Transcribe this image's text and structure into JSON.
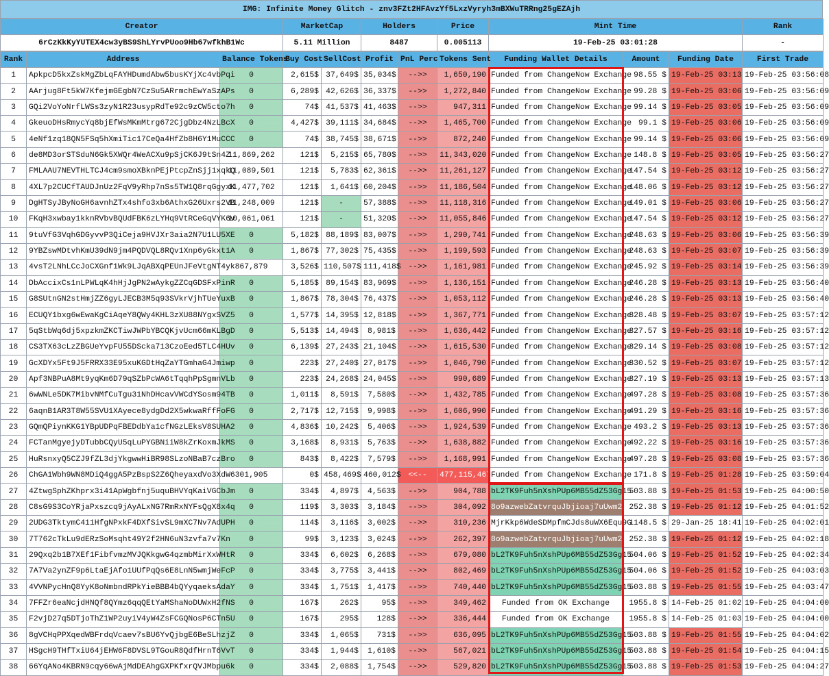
{
  "title": "IMG: Infinite Money Glitch - znv3FZt2HFAvzYf5LxzVyryh3mBXWuTRRng25gEZAjh",
  "summary": {
    "headers": [
      "Creator",
      "MarketCap",
      "Holders",
      "Price",
      "Mint Time",
      "Rank"
    ],
    "values": [
      "6rCzKkKyYUTEX4cw3yBS9ShLYrvPUoo9Hb67wfkhB1Wc",
      "5.11 Million",
      "8487",
      "0.005113",
      "19-Feb-25 03:01:28",
      "-"
    ]
  },
  "table": {
    "columns": [
      "Rank",
      "Address",
      "Balance Tokens",
      "Buy Cost",
      "SellCost",
      "Profit",
      "PnL Perc",
      "Tokens Sent",
      "Funding Wallet Details",
      "Amount",
      "Funding Date",
      "First Trade"
    ],
    "rows": [
      [
        "1",
        "ApkpcD5kxZskMgZbLqFAYHDumdAbw5busKYjXc4vbPqi",
        "0",
        "2,615$",
        "37,649$",
        "35,034$",
        "-->>",
        "1,650,190",
        "Funded from ChangeNow Exchange",
        "98.55 $",
        "19-Feb-25 03:13",
        "19-Feb-25 03:56:08"
      ],
      [
        "2",
        "AArjug8Ft5kW7KfejmGEgbN7CzSu5ARrmchEwYaSzAPs",
        "0",
        "6,289$",
        "42,626$",
        "36,337$",
        "-->>",
        "1,272,840",
        "Funded from ChangeNow Exchange",
        "99.28 $",
        "19-Feb-25 03:06",
        "19-Feb-25 03:56:09"
      ],
      [
        "3",
        "GQi2VoYoNrfLWSs3zyN1R23usypRdTe92c9zCW5cto7h",
        "0",
        "74$",
        "41,537$",
        "41,463$",
        "-->>",
        "947,311",
        "Funded from ChangeNow Exchange",
        "99.14 $",
        "19-Feb-25 03:05",
        "19-Feb-25 03:56:09"
      ],
      [
        "4",
        "GkeuoDHsRmycYq8bjEfWsMKmMtrg672CjgDbz4NzLBcX",
        "0",
        "4,427$",
        "39,111$",
        "34,684$",
        "-->>",
        "1,465,700",
        "Funded from ChangeNow Exchange",
        "99.1 $",
        "19-Feb-25 03:06",
        "19-Feb-25 03:56:09"
      ],
      [
        "5",
        "4eNf1zq18QN5FSq5hXmiTic17CeQa4HfZb8H6Y1MuCCC",
        "0",
        "74$",
        "38,745$",
        "38,671$",
        "-->>",
        "872,240",
        "Funded from ChangeNow Exchange",
        "99.14 $",
        "19-Feb-25 03:06",
        "19-Feb-25 03:56:09"
      ],
      [
        "6",
        "de8MD3orSTSduN6Gk5XWQr4WeACXu9pSjCK6J9tSn4Z",
        "11,869,262",
        "121$",
        "5,215$",
        "65,780$",
        "-->>",
        "11,343,020",
        "Funded from ChangeNow Exchange",
        "148.8 $",
        "19-Feb-25 03:05",
        "19-Feb-25 03:56:27"
      ],
      [
        "7",
        "FMLAAU7NEVTHLTCJ4cm9smoXBknPEjPtcpZnSjj1xqkQ",
        "11,089,501",
        "121$",
        "5,783$",
        "62,361$",
        "-->>",
        "11,261,127",
        "Funded from ChangeNow Exchange",
        "147.54 $",
        "19-Feb-25 03:12",
        "19-Feb-25 03:56:27"
      ],
      [
        "8",
        "4XL7p2CUCfTAUDJnUz2FqV9yRhp7nSs5TW1Q8rqGgyxK",
        "11,477,702",
        "121$",
        "1,641$",
        "60,204$",
        "-->>",
        "11,186,504",
        "Funded from ChangeNow Exchange",
        "148.06 $",
        "19-Feb-25 03:12",
        "19-Feb-25 03:56:27"
      ],
      [
        "9",
        "DgHTSyJByNoGH6avnhZTx4shfo3xb6AthxG26Uxrs2VB",
        "11,248,009",
        "121$",
        "-",
        "57,388$",
        "-->>",
        "11,118,316",
        "Funded from ChangeNow Exchange",
        "149.01 $",
        "19-Feb-25 03:06",
        "19-Feb-25 03:56:27"
      ],
      [
        "10",
        "FKqH3xwbay1kknRVbvBQUdFBK6zLYHq9VtRCeGqVYK6v",
        "10,061,061",
        "121$",
        "-",
        "51,320$",
        "-->>",
        "11,055,846",
        "Funded from ChangeNow Exchange",
        "147.54 $",
        "19-Feb-25 03:12",
        "19-Feb-25 03:56:27"
      ],
      [
        "11",
        "9tuVfG3VqhGDGyvvP3QiCeja9HVJXr3aia2N7U1LU5XE",
        "0",
        "5,182$",
        "88,189$",
        "83,007$",
        "-->>",
        "1,290,741",
        "Funded from ChangeNow Exchange",
        "248.63 $",
        "19-Feb-25 03:06",
        "19-Feb-25 03:56:39"
      ],
      [
        "12",
        "9YBZswMDtvhKmU39dN9jm4PQDVQL8RQv1Xnp6yGkxt1A",
        "0",
        "1,867$",
        "77,302$",
        "75,435$",
        "-->>",
        "1,199,593",
        "Funded from ChangeNow Exchange",
        "248.63 $",
        "19-Feb-25 03:07",
        "19-Feb-25 03:56:39"
      ],
      [
        "13",
        "4vsT2LNhLCcJoCXGnf1Wk9LJqABXqPEUnJFeVtgNT4yk",
        "867,879",
        "3,526$",
        "110,507$",
        "111,418$",
        "-->>",
        "1,161,981",
        "Funded from ChangeNow Exchange",
        "245.92 $",
        "19-Feb-25 03:14",
        "19-Feb-25 03:56:39"
      ],
      [
        "14",
        "DbAccixCs1nLPWLqK4hHjJgPN2wAykgZZCqGDSFxPinR",
        "0",
        "5,185$",
        "89,154$",
        "83,969$",
        "-->>",
        "1,136,151",
        "Funded from ChangeNow Exchange",
        "246.28 $",
        "19-Feb-25 03:13",
        "19-Feb-25 03:56:40"
      ],
      [
        "15",
        "G8SUtnGN2stHmjZZ6gyLJECB3M5q93SVkrVjhTUeYuxB",
        "0",
        "1,867$",
        "78,304$",
        "76,437$",
        "-->>",
        "1,053,112",
        "Funded from ChangeNow Exchange",
        "246.28 $",
        "19-Feb-25 03:13",
        "19-Feb-25 03:56:40"
      ],
      [
        "16",
        "ECUQY1bxg6wEwaKgCiAqeY8QWy4KHL3zXU88NYgxSVZ5",
        "0",
        "1,577$",
        "14,395$",
        "12,818$",
        "-->>",
        "1,367,771",
        "Funded from ChangeNow Exchange",
        "328.48 $",
        "19-Feb-25 03:07",
        "19-Feb-25 03:57:12"
      ],
      [
        "17",
        "5qStbWq6dj5xpzkmZKCTiwJWPbYBCQKjvUcm66mKLBgD",
        "0",
        "5,513$",
        "14,494$",
        "8,981$",
        "-->>",
        "1,636,442",
        "Funded from ChangeNow Exchange",
        "327.57 $",
        "19-Feb-25 03:16",
        "19-Feb-25 03:57:12"
      ],
      [
        "18",
        "CS3TX63cLzZBGUeYvpFU55DScka713CzoEed5TLC4HUv",
        "0",
        "6,139$",
        "27,243$",
        "21,104$",
        "-->>",
        "1,615,530",
        "Funded from ChangeNow Exchange",
        "329.14 $",
        "19-Feb-25 03:08",
        "19-Feb-25 03:57:12"
      ],
      [
        "19",
        "GcXDYx5Ft9J5FRRX33E95xuKGDtHqZaYTGmhaG4Jmiwp",
        "0",
        "223$",
        "27,240$",
        "27,017$",
        "-->>",
        "1,046,790",
        "Funded from ChangeNow Exchange",
        "330.52 $",
        "19-Feb-25 03:07",
        "19-Feb-25 03:57:12"
      ],
      [
        "20",
        "Apf3NBPuA8Mt9yqKm6D79qSZbPcWA6tTqqhPpSgmnVLb",
        "0",
        "223$",
        "24,268$",
        "24,045$",
        "-->>",
        "990,689",
        "Funded from ChangeNow Exchange",
        "327.19 $",
        "19-Feb-25 03:13",
        "19-Feb-25 03:57:13"
      ],
      [
        "21",
        "6wWNLe5DK7MibvNMfCuTgu31NhDHcavVWCdYSosm94TB",
        "0",
        "1,011$",
        "8,591$",
        "7,580$",
        "-->>",
        "1,432,785",
        "Funded from ChangeNow Exchange",
        "497.28 $",
        "19-Feb-25 03:08",
        "19-Feb-25 03:57:36"
      ],
      [
        "22",
        "6aqnB1AR3T8W55SVU1XAyece8ydgDd2X5wkwaRffFoFG",
        "0",
        "2,717$",
        "12,715$",
        "9,998$",
        "-->>",
        "1,606,990",
        "Funded from ChangeNow Exchange",
        "491.29 $",
        "19-Feb-25 03:16",
        "19-Feb-25 03:57:36"
      ],
      [
        "23",
        "GQmQPiynKKG1YBpUDPqFBEDdbYa1cfNGzLEksV8SUHA2",
        "0",
        "4,836$",
        "10,242$",
        "5,406$",
        "-->>",
        "1,924,539",
        "Funded from ChangeNow Exchange",
        "493.2 $",
        "19-Feb-25 03:13",
        "19-Feb-25 03:57:36"
      ],
      [
        "24",
        "FCTanMgyejyDTubbCQyU5qLuPYGBNiiW8kZrKoxmJkMS",
        "0",
        "3,168$",
        "8,931$",
        "5,763$",
        "-->>",
        "1,638,882",
        "Funded from ChangeNow Exchange",
        "492.22 $",
        "19-Feb-25 03:16",
        "19-Feb-25 03:57:36"
      ],
      [
        "25",
        "HuRsnxyQ5CZJ9fZL3djYkgwwHiBR98SLzoNBaB7czBro",
        "0",
        "843$",
        "8,422$",
        "7,579$",
        "-->>",
        "1,168,991",
        "Funded from ChangeNow Exchange",
        "497.28 $",
        "19-Feb-25 03:08",
        "19-Feb-25 03:57:36"
      ],
      [
        "26",
        "ChGA1Wbh9WN8MDiQ4ggA5PzBspS2Z6QheyaxdVo3XdW6",
        "301,905",
        "0$",
        "458,469$",
        "460,012$",
        "<<--",
        "477,115,467",
        "Funded from ChangeNow Exchange",
        "171.8 $",
        "19-Feb-25 01:28",
        "19-Feb-25 03:59:04"
      ],
      [
        "27",
        "4ZtwgSphZKhprx3i41ApWgbfnj5uquBHVYqKaiVGCbJm",
        "0",
        "334$",
        "4,897$",
        "4,563$",
        "-->>",
        "904,788",
        "bL2TK9Fuh5nXshPUp6MB55dZ53Gg15",
        "503.88 $",
        "19-Feb-25 01:53",
        "19-Feb-25 04:00:50"
      ],
      [
        "28",
        "C8sG9S3CoYRjaPxszcq9jAyALxNG7RmRxNYFsQgX8x4q",
        "0",
        "119$",
        "3,303$",
        "3,184$",
        "-->>",
        "304,092",
        "8o9azwebZatvrquJbjioaj7uUwm2aR",
        "252.38 $",
        "19-Feb-25 01:12",
        "19-Feb-25 04:01:52"
      ],
      [
        "29",
        "2UDG3TktymC411HfgNPxkF4DXfSivSL9mXC7Nv7AdUPH",
        "0",
        "114$",
        "3,116$",
        "3,002$",
        "-->>",
        "310,236",
        "MjrKkp6WdeSDMpfmCJds8uWX6Equ9G",
        "1148.5 $",
        "29-Jan-25 18:41",
        "19-Feb-25 04:02:01"
      ],
      [
        "30",
        "7T762cTkLu9dERzSoMsqht49Y2f2HN6uN3zvfa7v7Kn",
        "0",
        "99$",
        "3,123$",
        "3,024$",
        "-->>",
        "262,397",
        "8o9azwebZatvrquJbjioaj7uUwm2aR",
        "252.38 $",
        "19-Feb-25 01:12",
        "19-Feb-25 04:02:18"
      ],
      [
        "31",
        "29Qxq2b1B7XEf1FibfvmzMVJQKkgwG4qzmbMirXxWHtR",
        "0",
        "334$",
        "6,602$",
        "6,268$",
        "-->>",
        "679,080",
        "bL2TK9Fuh5nXshPUp6MB55dZ53Gg15",
        "504.06 $",
        "19-Feb-25 01:52",
        "19-Feb-25 04:02:34"
      ],
      [
        "32",
        "7A7Va2ynZF9p6LtaEjAfo1UUfPqQs6E8LnN5wmjWeFcP",
        "0",
        "334$",
        "3,775$",
        "3,441$",
        "-->>",
        "802,469",
        "bL2TK9Fuh5nXshPUp6MB55dZ53Gg15",
        "504.06 $",
        "19-Feb-25 01:52",
        "19-Feb-25 04:03:03"
      ],
      [
        "33",
        "4VVNPycHnQ8YyK8oNmbndRPkYieBBB4bQYyqaeksAdaY",
        "0",
        "334$",
        "1,751$",
        "1,417$",
        "-->>",
        "740,440",
        "bL2TK9Fuh5nXshPUp6MB55dZ53Gg15",
        "503.88 $",
        "19-Feb-25 01:55",
        "19-Feb-25 04:03:47"
      ],
      [
        "34",
        "7FFZr6eaNcjdHNQf8QYmz6qqQEtYaMShaNoDUWxH2fNS",
        "0",
        "167$",
        "262$",
        "95$",
        "-->>",
        "349,462",
        "Funded from OK Exchange",
        "1955.8 $",
        "14-Feb-25 01:02",
        "19-Feb-25 04:04:00"
      ],
      [
        "35",
        "F2vjD27q5DTjoThZ1WP2uyiV4yW4ZsFCGQNosP6CTn5U",
        "0",
        "167$",
        "295$",
        "128$",
        "-->>",
        "336,444",
        "Funded from OK Exchange",
        "1955.8 $",
        "14-Feb-25 01:03",
        "19-Feb-25 04:04:00"
      ],
      [
        "36",
        "8gVCHqPPXqedWBFrdqVcaev7sBU6YvQjbgE6BeSLhzjZ",
        "0",
        "334$",
        "1,065$",
        "731$",
        "-->>",
        "636,095",
        "bL2TK9Fuh5nXshPUp6MB55dZ53Gg15",
        "503.88 $",
        "19-Feb-25 01:55",
        "19-Feb-25 04:04:02"
      ],
      [
        "37",
        "HSgcH9THfTxiU64jEHW6F8DVSL9TGouR8QdfHrnT6VvT",
        "0",
        "334$",
        "1,944$",
        "1,610$",
        "-->>",
        "567,021",
        "bL2TK9Fuh5nXshPUp6MB55dZ53Gg15",
        "503.88 $",
        "19-Feb-25 01:54",
        "19-Feb-25 04:04:15"
      ],
      [
        "38",
        "66YqANo4KBRN9cqy66wAjMdDEAhgGXPKfxrQVJMbpu6k",
        "0",
        "334$",
        "2,088$",
        "1,754$",
        "-->>",
        "529,820",
        "bL2TK9Fuh5nXshPUp6MB55dZ53Gg15",
        "503.88 $",
        "19-Feb-25 01:53",
        "19-Feb-25 04:04:27"
      ]
    ]
  }
}
